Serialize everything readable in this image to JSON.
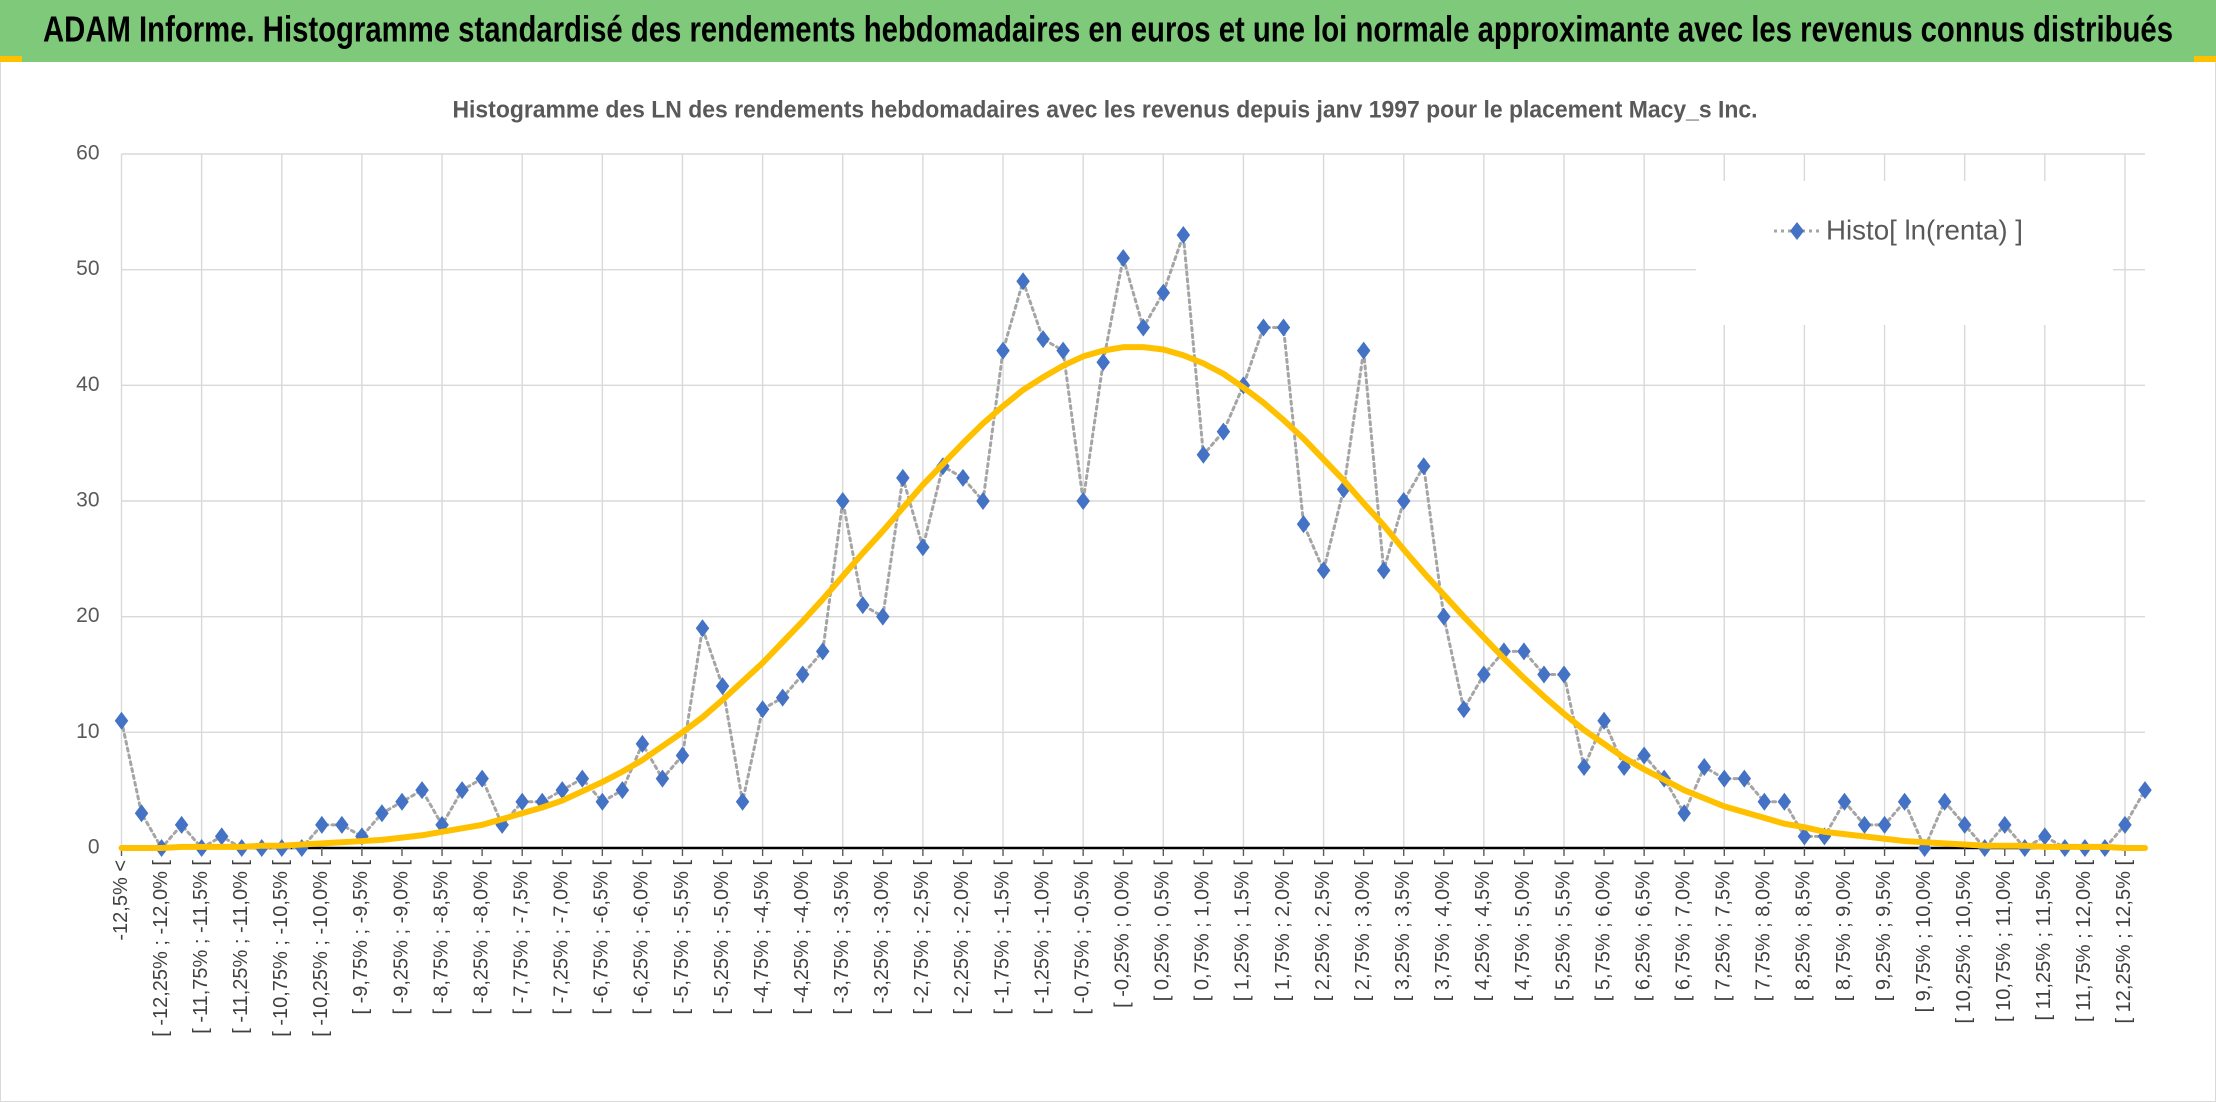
{
  "header": {
    "title": "ADAM Informe. Histogramme standardisé des rendements hebdomadaires en euros et une loi normale approximante avec les revenus connus distribués"
  },
  "chart_data": {
    "type": "line",
    "title": "Histogramme des LN des rendements hebdomadaires avec les revenus depuis janv 1997 pour le placement Macy_s Inc.",
    "categories": [
      "-12,5% <",
      null,
      "[ -12,25% ; -12,0% [",
      null,
      "[ -11,75% ; -11,5% [",
      null,
      "[ -11,25% ; -11,0% [",
      null,
      "[ -10,75% ; -10,5% [",
      null,
      "[ -10,25% ; -10,0% [",
      null,
      "[ -9,75% ; -9,5% [",
      null,
      "[ -9,25% ; -9,0% [",
      null,
      "[ -8,75% ; -8,5% [",
      null,
      "[ -8,25% ; -8,0% [",
      null,
      "[ -7,75% ; -7,5% [",
      null,
      "[ -7,25% ; -7,0% [",
      null,
      "[ -6,75% ; -6,5% [",
      null,
      "[ -6,25% ; -6,0% [",
      null,
      "[ -5,75% ; -5,5% [",
      null,
      "[ -5,25% ; -5,0% [",
      null,
      "[ -4,75% ; -4,5% [",
      null,
      "[ -4,25% ; -4,0% [",
      null,
      "[ -3,75% ; -3,5% [",
      null,
      "[ -3,25% ; -3,0% [",
      null,
      "[ -2,75% ; -2,5% [",
      null,
      "[ -2,25% ; -2,0% [",
      null,
      "[ -1,75% ; -1,5% [",
      null,
      "[ -1,25% ; -1,0% [",
      null,
      "[ -0,75% ; -0,5% [",
      null,
      "[ -0,25% ; 0,0% [",
      null,
      "[ 0,25% ; 0,5% [",
      null,
      "[ 0,75% ; 1,0% [",
      null,
      "[ 1,25% ; 1,5% [",
      null,
      "[ 1,75% ; 2,0% [",
      null,
      "[ 2,25% ; 2,5% [",
      null,
      "[ 2,75% ; 3,0% [",
      null,
      "[ 3,25% ; 3,5% [",
      null,
      "[ 3,75% ; 4,0% [",
      null,
      "[ 4,25% ; 4,5% [",
      null,
      "[ 4,75% ; 5,0% [",
      null,
      "[ 5,25% ; 5,5% [",
      null,
      "[ 5,75% ; 6,0% [",
      null,
      "[ 6,25% ; 6,5% [",
      null,
      "[ 6,75% ; 7,0% [",
      null,
      "[ 7,25% ; 7,5% [",
      null,
      "[ 7,75% ; 8,0% [",
      null,
      "[ 8,25% ; 8,5% [",
      null,
      "[ 8,75% ; 9,0% [",
      null,
      "[ 9,25% ; 9,5% [",
      null,
      "[ 9,75% ; 10,0% [",
      null,
      "[ 10,25% ; 10,5% [",
      null,
      "[ 10,75% ; 11,0% [",
      null,
      "[ 11,25% ; 11,5% [",
      null,
      "[ 11,75% ; 12,0% [",
      null,
      "[ 12,25% ; 12,5% [",
      null
    ],
    "series": [
      {
        "name": "Histo[ ln(renta) ]",
        "color": "#4472c4",
        "line_color": "#a5a5a5",
        "marker": "diamond",
        "line_style": "dotted",
        "values": [
          11,
          3,
          0,
          2,
          0,
          1,
          0,
          0,
          0,
          0,
          2,
          2,
          1,
          3,
          4,
          5,
          2,
          5,
          6,
          2,
          4,
          4,
          5,
          6,
          4,
          5,
          9,
          6,
          8,
          19,
          14,
          4,
          12,
          13,
          15,
          17,
          30,
          21,
          20,
          32,
          26,
          33,
          32,
          30,
          43,
          49,
          44,
          43,
          30,
          42,
          51,
          45,
          48,
          53,
          34,
          36,
          40,
          45,
          45,
          28,
          24,
          31,
          43,
          24,
          30,
          33,
          20,
          12,
          15,
          17,
          17,
          15,
          15,
          7,
          11,
          7,
          8,
          6,
          3,
          7,
          6,
          6,
          4,
          4,
          1,
          1,
          4,
          2,
          2,
          4,
          0,
          4,
          2,
          0,
          2,
          0,
          1,
          0,
          0,
          0,
          2,
          5
        ]
      },
      {
        "color": "#ffc000",
        "marker": "none",
        "line_style": "solid",
        "values": [
          0.0,
          0.0,
          0.0,
          0.1,
          0.1,
          0.1,
          0.1,
          0.2,
          0.2,
          0.3,
          0.4,
          0.5,
          0.6,
          0.7,
          0.9,
          1.1,
          1.4,
          1.7,
          2.0,
          2.5,
          3.0,
          3.5,
          4.1,
          4.9,
          5.7,
          6.6,
          7.6,
          8.8,
          10.0,
          11.3,
          12.8,
          14.4,
          16.0,
          17.8,
          19.6,
          21.5,
          23.5,
          25.5,
          27.4,
          29.4,
          31.4,
          33.2,
          35.0,
          36.7,
          38.2,
          39.6,
          40.7,
          41.7,
          42.5,
          43.0,
          43.3,
          43.3,
          43.1,
          42.6,
          41.9,
          41.0,
          39.8,
          38.5,
          37.0,
          35.4,
          33.6,
          31.8,
          29.8,
          27.9,
          25.8,
          23.8,
          21.9,
          20.0,
          18.2,
          16.4,
          14.7,
          13.1,
          11.6,
          10.2,
          9.0,
          7.8,
          6.8,
          5.9,
          5.0,
          4.3,
          3.6,
          3.1,
          2.6,
          2.1,
          1.8,
          1.4,
          1.2,
          1.0,
          0.8,
          0.6,
          0.5,
          0.4,
          0.3,
          0.2,
          0.2,
          0.2,
          0.1,
          0.1,
          0.1,
          0.1,
          0.0,
          0.0
        ]
      }
    ],
    "ylim": [
      0,
      60
    ],
    "yticks": [
      0,
      10,
      20,
      30,
      40,
      50,
      60
    ],
    "grid": true,
    "legend": "upper right"
  }
}
